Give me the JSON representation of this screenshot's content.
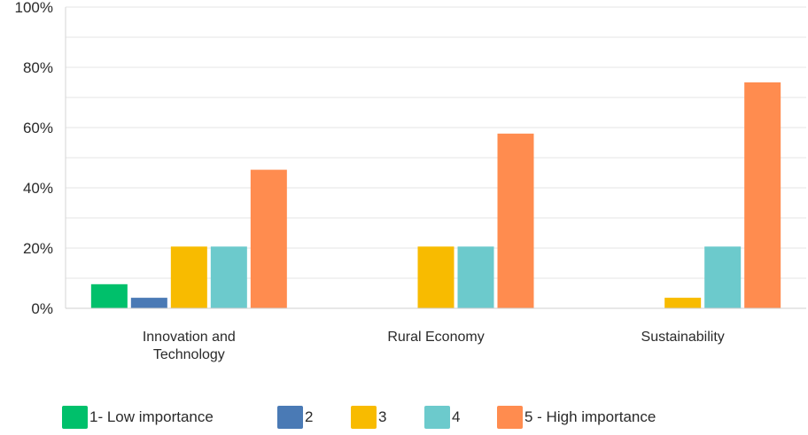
{
  "chart_data": {
    "type": "bar",
    "categories": [
      "Innovation and Technology",
      "Rural Economy",
      "Sustainability"
    ],
    "series": [
      {
        "name": "1- Low importance",
        "color": "#00c06b",
        "values": [
          8,
          0,
          0
        ]
      },
      {
        "name": "2",
        "color": "#4a7ab5",
        "values": [
          3.5,
          0,
          0
        ]
      },
      {
        "name": "3",
        "color": "#f8bb00",
        "values": [
          20.5,
          20.5,
          3.5
        ]
      },
      {
        "name": "4",
        "color": "#6ccacc",
        "values": [
          20.5,
          20.5,
          20.5
        ]
      },
      {
        "name": "5 - High importance",
        "color": "#ff8c4f",
        "values": [
          46,
          58,
          75
        ]
      }
    ],
    "ylim": [
      0,
      100
    ],
    "yticks": [
      "0%",
      "20%",
      "40%",
      "60%",
      "80%",
      "100%"
    ],
    "grid": true,
    "legend_position": "bottom"
  }
}
